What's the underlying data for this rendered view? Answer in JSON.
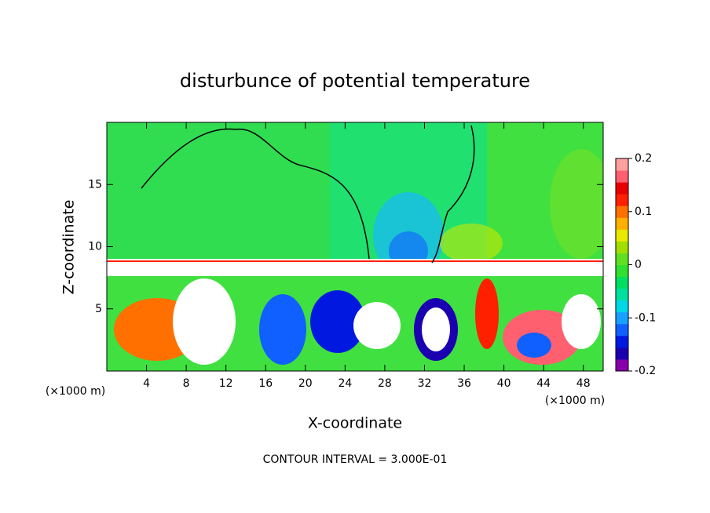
{
  "chart_data": {
    "type": "contour",
    "title": "disturbunce of potential temperature",
    "x_label": "X-coordinate",
    "y_label": "Z-coordinate",
    "x_unit": "(×1000 m)",
    "y_unit": "(×1000 m)",
    "note": "CONTOUR INTERVAL = 3.000E-01",
    "xlim": [
      0,
      50
    ],
    "xticks": [
      4,
      8,
      12,
      16,
      20,
      24,
      28,
      32,
      36,
      40,
      44,
      48
    ],
    "ylim": [
      0,
      20
    ],
    "yticks": [
      5,
      10,
      15
    ],
    "colorbar": {
      "lim": [
        -0.2,
        0.2
      ],
      "ticks": [
        0.2,
        0.1,
        0,
        -0.1,
        -0.2
      ],
      "colors": [
        "#8800aa",
        "#1a00b0",
        "#0018e0",
        "#1060ff",
        "#18a0ff",
        "#00d8e8",
        "#00e0a0",
        "#00e060",
        "#30e030",
        "#60e020",
        "#a0e000",
        "#e8e800",
        "#ffb000",
        "#ff7000",
        "#ff2000",
        "#e80000",
        "#ff6070",
        "#ffa0a0"
      ]
    }
  }
}
